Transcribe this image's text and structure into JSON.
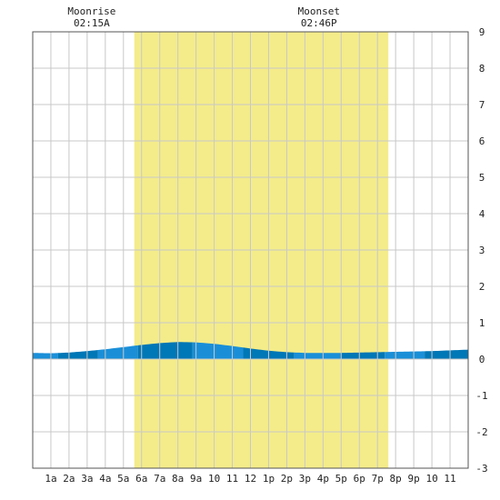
{
  "chart_data": {
    "type": "area",
    "title": "",
    "xlabel": "",
    "ylabel": "",
    "ylim": [
      -3,
      9
    ],
    "xlim_hours": [
      0,
      24
    ],
    "y_ticks": [
      "-3",
      "-2",
      "-1",
      "0",
      "1",
      "2",
      "3",
      "4",
      "5",
      "6",
      "7",
      "8",
      "9"
    ],
    "x_tick_labels": [
      "1a",
      "2a",
      "3a",
      "4a",
      "5a",
      "6a",
      "7a",
      "8a",
      "9a",
      "10",
      "11",
      "12",
      "1p",
      "2p",
      "3p",
      "4p",
      "5p",
      "6p",
      "7p",
      "8p",
      "9p",
      "10",
      "11"
    ],
    "daylight": {
      "start_hour": 5.6,
      "end_hour": 19.6,
      "color": "#f4ec8a"
    },
    "moonrise": {
      "label": "Moonrise",
      "time": "02:15A",
      "hour": 2.25
    },
    "moonset": {
      "label": "Moonset",
      "time": "02:46P",
      "hour": 14.77
    },
    "series": [
      {
        "x": [
          0,
          1,
          2,
          3,
          4,
          5,
          6,
          7,
          8,
          9,
          10,
          11,
          12,
          13,
          14,
          15,
          16,
          17,
          18,
          19,
          20,
          21,
          22,
          23,
          24
        ],
        "values": [
          0.17,
          0.16,
          0.18,
          0.22,
          0.27,
          0.33,
          0.39,
          0.44,
          0.47,
          0.46,
          0.42,
          0.36,
          0.29,
          0.23,
          0.19,
          0.17,
          0.17,
          0.17,
          0.18,
          0.19,
          0.2,
          0.21,
          0.22,
          0.24,
          0.26
        ]
      }
    ],
    "fill_colors": [
      "#1a8fd8",
      "#0077b6"
    ],
    "grid": true,
    "legend": "none"
  }
}
